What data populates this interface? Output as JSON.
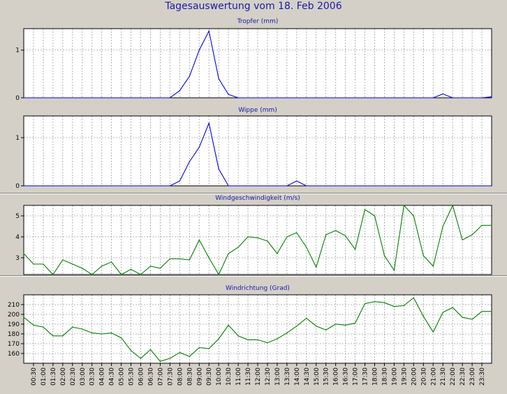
{
  "page_title": "Tagesauswertung vom 18. Feb 2006",
  "colors": {
    "background": "#d4d0c8",
    "plot_bg": "#ffffff",
    "title_text": "#1a1aa8",
    "rain_line": "#0000ee",
    "wind_line": "#008000",
    "grid": "#a0a0a0"
  },
  "chart_data": [
    {
      "type": "line",
      "title": "Tropfer (mm)",
      "xlabel": "",
      "ylabel": "",
      "x": [
        "00:00",
        "00:30",
        "01:00",
        "01:30",
        "02:00",
        "02:30",
        "03:00",
        "03:30",
        "04:00",
        "04:30",
        "05:00",
        "05:30",
        "06:00",
        "06:30",
        "07:00",
        "07:30",
        "08:00",
        "08:30",
        "09:00",
        "09:30",
        "10:00",
        "10:30",
        "11:00",
        "11:30",
        "12:00",
        "12:30",
        "13:00",
        "13:30",
        "14:00",
        "14:30",
        "15:00",
        "15:30",
        "16:00",
        "16:30",
        "17:00",
        "17:30",
        "18:00",
        "18:30",
        "19:00",
        "19:30",
        "20:00",
        "20:30",
        "21:00",
        "21:30",
        "22:00",
        "22:30",
        "23:00",
        "23:30",
        "24:00"
      ],
      "ylim": [
        0,
        1.45
      ],
      "yticks": [
        0,
        1
      ],
      "grid": true,
      "series": [
        {
          "values": [
            0,
            0,
            0,
            0,
            0,
            0,
            0,
            0,
            0,
            0,
            0,
            0,
            0,
            0,
            0,
            0,
            0.15,
            0.45,
            1.0,
            1.4,
            0.4,
            0.07,
            0,
            0,
            0,
            0,
            0,
            0,
            0,
            0,
            0,
            0,
            0,
            0,
            0,
            0,
            0,
            0,
            0,
            0,
            0,
            0,
            0,
            0.08,
            0,
            0,
            0,
            0,
            0.02
          ]
        }
      ]
    },
    {
      "type": "line",
      "title": "Wippe (mm)",
      "xlabel": "",
      "ylabel": "",
      "x": [
        "00:00",
        "00:30",
        "01:00",
        "01:30",
        "02:00",
        "02:30",
        "03:00",
        "03:30",
        "04:00",
        "04:30",
        "05:00",
        "05:30",
        "06:00",
        "06:30",
        "07:00",
        "07:30",
        "08:00",
        "08:30",
        "09:00",
        "09:30",
        "10:00",
        "10:30",
        "11:00",
        "11:30",
        "12:00",
        "12:30",
        "13:00",
        "13:30",
        "14:00",
        "14:30",
        "15:00",
        "15:30",
        "16:00",
        "16:30",
        "17:00",
        "17:30",
        "18:00",
        "18:30",
        "19:00",
        "19:30",
        "20:00",
        "20:30",
        "21:00",
        "21:30",
        "22:00",
        "22:30",
        "23:00",
        "23:30",
        "24:00"
      ],
      "ylim": [
        0,
        1.45
      ],
      "yticks": [
        0,
        1
      ],
      "grid": true,
      "series": [
        {
          "values": [
            0,
            0,
            0,
            0,
            0,
            0,
            0,
            0,
            0,
            0,
            0,
            0,
            0,
            0,
            0,
            0,
            0.1,
            0.5,
            0.8,
            1.3,
            0.35,
            0,
            0,
            0,
            0,
            0,
            0,
            0,
            0.1,
            0,
            0,
            0,
            0,
            0,
            0,
            0,
            0,
            0,
            0,
            0,
            0,
            0,
            0,
            0,
            0,
            0,
            0,
            0,
            0
          ]
        }
      ]
    },
    {
      "type": "line",
      "title": "Windgeschwindigkeit (m/s)",
      "xlabel": "",
      "ylabel": "",
      "x": [
        "00:00",
        "00:30",
        "01:00",
        "01:30",
        "02:00",
        "02:30",
        "03:00",
        "03:30",
        "04:00",
        "04:30",
        "05:00",
        "05:30",
        "06:00",
        "06:30",
        "07:00",
        "07:30",
        "08:00",
        "08:30",
        "09:00",
        "09:30",
        "10:00",
        "10:30",
        "11:00",
        "11:30",
        "12:00",
        "12:30",
        "13:00",
        "13:30",
        "14:00",
        "14:30",
        "15:00",
        "15:30",
        "16:00",
        "16:30",
        "17:00",
        "17:30",
        "18:00",
        "18:30",
        "19:00",
        "19:30",
        "20:00",
        "20:30",
        "21:00",
        "21:30",
        "22:00",
        "22:30",
        "23:00",
        "23:30",
        "24:00"
      ],
      "ylim": [
        2.2,
        5.5
      ],
      "yticks": [
        3,
        4,
        5
      ],
      "grid": true,
      "series": [
        {
          "values": [
            3.2,
            2.7,
            2.7,
            2.2,
            2.9,
            2.7,
            2.5,
            2.2,
            2.6,
            2.8,
            2.2,
            2.45,
            2.2,
            2.6,
            2.5,
            2.95,
            2.95,
            2.9,
            3.85,
            3.0,
            2.2,
            3.2,
            3.5,
            4.0,
            3.95,
            3.8,
            3.2,
            4.0,
            4.2,
            3.5,
            2.55,
            4.1,
            4.3,
            4.05,
            3.4,
            5.3,
            5.0,
            3.1,
            2.4,
            5.5,
            5.0,
            3.1,
            2.6,
            4.5,
            5.5,
            3.85,
            4.1,
            4.55,
            4.55
          ]
        }
      ]
    },
    {
      "type": "line",
      "title": "Windrichtung (Grad)",
      "xlabel": "",
      "ylabel": "",
      "x": [
        "00:00",
        "00:30",
        "01:00",
        "01:30",
        "02:00",
        "02:30",
        "03:00",
        "03:30",
        "04:00",
        "04:30",
        "05:00",
        "05:30",
        "06:00",
        "06:30",
        "07:00",
        "07:30",
        "08:00",
        "08:30",
        "09:00",
        "09:30",
        "10:00",
        "10:30",
        "11:00",
        "11:30",
        "12:00",
        "12:30",
        "13:00",
        "13:30",
        "14:00",
        "14:30",
        "15:00",
        "15:30",
        "16:00",
        "16:30",
        "17:00",
        "17:30",
        "18:00",
        "18:30",
        "19:00",
        "19:30",
        "20:00",
        "20:30",
        "21:00",
        "21:30",
        "22:00",
        "22:30",
        "23:00",
        "23:30",
        "24:00"
      ],
      "xticks": [
        "00:30",
        "01:00",
        "01:30",
        "02:00",
        "02:30",
        "03:00",
        "03:30",
        "04:00",
        "04:30",
        "05:00",
        "05:30",
        "06:00",
        "06:30",
        "07:00",
        "07:30",
        "08:00",
        "08:30",
        "09:00",
        "09:30",
        "10:00",
        "10:30",
        "11:00",
        "11:30",
        "12:00",
        "12:30",
        "13:00",
        "13:30",
        "14:00",
        "14:30",
        "15:00",
        "15:30",
        "16:00",
        "16:30",
        "17:00",
        "17:30",
        "18:00",
        "18:30",
        "19:00",
        "19:30",
        "20:00",
        "20:30",
        "21:00",
        "21:30",
        "22:00",
        "22:30",
        "23:00",
        "23:30"
      ],
      "ylim": [
        150,
        220
      ],
      "yticks": [
        160,
        170,
        180,
        190,
        200,
        210
      ],
      "grid": true,
      "series": [
        {
          "values": [
            197,
            189,
            187,
            178,
            178,
            187,
            185,
            181,
            180,
            181,
            176,
            163,
            155,
            164,
            152,
            155,
            161,
            157,
            166,
            165,
            175,
            189,
            178,
            174,
            174,
            171,
            175,
            181,
            188,
            196,
            188,
            184,
            190,
            189,
            191,
            211,
            213,
            212,
            208,
            209,
            217,
            198,
            182,
            202,
            207,
            197,
            195,
            203,
            203
          ]
        }
      ]
    }
  ]
}
